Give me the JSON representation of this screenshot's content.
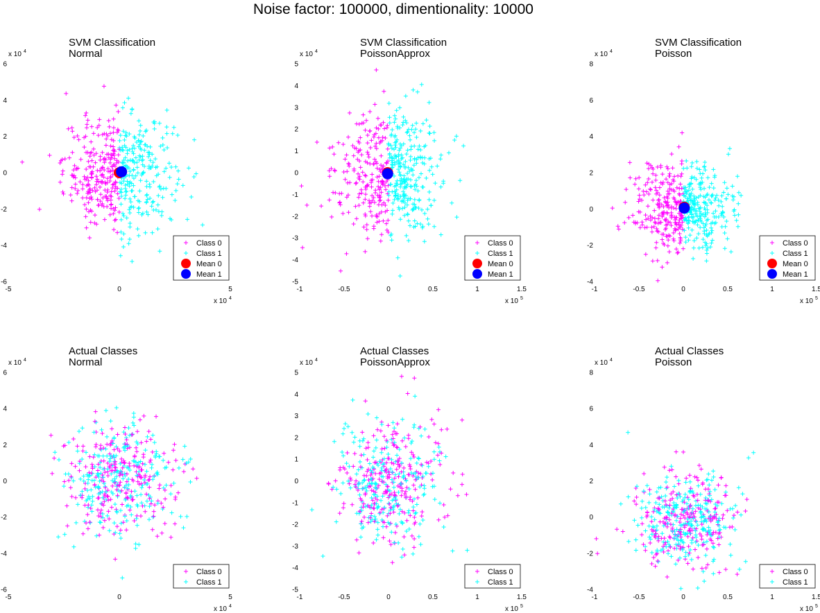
{
  "figure": {
    "title": "Noise factor: 100000, dimentionality: 10000",
    "colors": {
      "class0": "#ff00ff",
      "class1": "#00ffff",
      "mean0": "#ff0000",
      "mean1": "#0000ff"
    },
    "legend_labels": {
      "class0": "Class 0",
      "class1": "Class 1",
      "mean0": "Mean 0",
      "mean1": "Mean 1"
    }
  },
  "chart_data": [
    {
      "id": "svm-normal",
      "type": "scatter",
      "title": [
        "SVM Classification",
        "Normal"
      ],
      "xlim": [
        -5,
        5
      ],
      "ylim": [
        -6,
        6
      ],
      "xticks": [
        "-5",
        "0",
        "5"
      ],
      "yticks": [
        "-6",
        "-4",
        "-2",
        "0",
        "2",
        "4",
        "6"
      ],
      "x_multiplier": "x 10",
      "x_exponent": "4",
      "y_multiplier": "x 10",
      "y_exponent": "4",
      "mode": "svm",
      "cloud": {
        "std_x": 1.25,
        "std_y": 1.6
      },
      "n_points": 500,
      "means": [
        {
          "x": 0,
          "y": 0
        },
        {
          "x": 0.1,
          "y": 0.05
        }
      ],
      "legend": [
        "Class 0",
        "Class 1",
        "Mean 0",
        "Mean 1"
      ],
      "legend_position": "bottom-right"
    },
    {
      "id": "svm-poissonapprox",
      "type": "scatter",
      "title": [
        "SVM Classification",
        "PoissonApprox"
      ],
      "xlim": [
        -1,
        1.5
      ],
      "ylim": [
        -5,
        5
      ],
      "xticks": [
        "-1",
        "-0.5",
        "0",
        "0.5",
        "1",
        "1.5"
      ],
      "yticks": [
        "-5",
        "-4",
        "-3",
        "-2",
        "-1",
        "0",
        "1",
        "2",
        "3",
        "4",
        "5"
      ],
      "x_multiplier": "x 10",
      "x_exponent": "5",
      "y_multiplier": "x 10",
      "y_exponent": "4",
      "mode": "svm",
      "cloud": {
        "std_x": 0.3,
        "std_y": 1.5
      },
      "n_points": 500,
      "means": [
        {
          "x": -0.01,
          "y": 0
        },
        {
          "x": -0.01,
          "y": -0.05
        }
      ],
      "legend": [
        "Class 0",
        "Class 1",
        "Mean 0",
        "Mean 1"
      ],
      "legend_position": "bottom-right"
    },
    {
      "id": "svm-poisson",
      "type": "scatter",
      "title": [
        "SVM Classification",
        "Poisson"
      ],
      "xlim": [
        -1,
        1.5
      ],
      "ylim": [
        -4,
        8
      ],
      "xticks": [
        "-1",
        "-0.5",
        "0",
        "0.5",
        "1",
        "1.5"
      ],
      "yticks": [
        "-4",
        "-2",
        "0",
        "2",
        "4",
        "6",
        "8"
      ],
      "x_multiplier": "x 10",
      "x_exponent": "5",
      "y_multiplier": "x 10",
      "y_exponent": "4",
      "mode": "svm",
      "cloud": {
        "std_x": 0.28,
        "std_y": 1.3
      },
      "n_points": 500,
      "means": [
        {
          "x": 0.01,
          "y": 0.1
        },
        {
          "x": 0.01,
          "y": 0.05
        }
      ],
      "legend": [
        "Class 0",
        "Class 1",
        "Mean 0",
        "Mean 1"
      ],
      "legend_position": "bottom-right"
    },
    {
      "id": "actual-normal",
      "type": "scatter",
      "title": [
        "Actual Classes",
        "Normal"
      ],
      "xlim": [
        -5,
        5
      ],
      "ylim": [
        -6,
        6
      ],
      "xticks": [
        "-5",
        "0",
        "5"
      ],
      "yticks": [
        "-6",
        "-4",
        "-2",
        "0",
        "2",
        "4",
        "6"
      ],
      "x_multiplier": "x 10",
      "x_exponent": "4",
      "y_multiplier": "x 10",
      "y_exponent": "4",
      "mode": "actual",
      "cloud": {
        "std_x": 1.25,
        "std_y": 1.6
      },
      "n_points": 500,
      "legend": [
        "Class 0",
        "Class 1"
      ],
      "legend_position": "bottom-right"
    },
    {
      "id": "actual-poissonapprox",
      "type": "scatter",
      "title": [
        "Actual Classes",
        "PoissonApprox"
      ],
      "xlim": [
        -1,
        1.5
      ],
      "ylim": [
        -5,
        5
      ],
      "xticks": [
        "-1",
        "-0.5",
        "0",
        "0.5",
        "1",
        "1.5"
      ],
      "yticks": [
        "-5",
        "-4",
        "-3",
        "-2",
        "-1",
        "0",
        "1",
        "2",
        "3",
        "4",
        "5"
      ],
      "x_multiplier": "x 10",
      "x_exponent": "5",
      "y_multiplier": "x 10",
      "y_exponent": "4",
      "mode": "actual",
      "cloud": {
        "std_x": 0.3,
        "std_y": 1.5
      },
      "n_points": 500,
      "legend": [
        "Class 0",
        "Class 1"
      ],
      "legend_position": "bottom-right"
    },
    {
      "id": "actual-poisson",
      "type": "scatter",
      "title": [
        "Actual Classes",
        "Poisson"
      ],
      "xlim": [
        -1,
        1.5
      ],
      "ylim": [
        -4,
        8
      ],
      "xticks": [
        "-1",
        "-0.5",
        "0",
        "0.5",
        "1",
        "1.5"
      ],
      "yticks": [
        "-4",
        "-2",
        "0",
        "2",
        "4",
        "6",
        "8"
      ],
      "x_multiplier": "x 10",
      "x_exponent": "5",
      "y_multiplier": "x 10",
      "y_exponent": "4",
      "mode": "actual",
      "cloud": {
        "std_x": 0.28,
        "std_y": 1.3
      },
      "n_points": 500,
      "legend": [
        "Class 0",
        "Class 1"
      ],
      "legend_position": "bottom-right"
    }
  ]
}
